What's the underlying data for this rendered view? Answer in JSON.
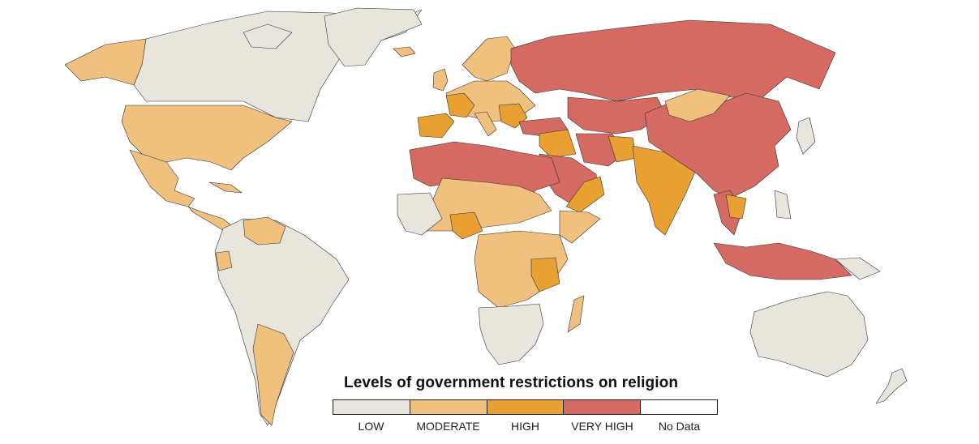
{
  "legend": {
    "title": "Levels of government restrictions on religion",
    "levels": [
      {
        "key": "low",
        "label": "LOW",
        "color": "#e8e5dc"
      },
      {
        "key": "moderate",
        "label": "MODERATE",
        "color": "#f0c07e"
      },
      {
        "key": "high",
        "label": "HIGH",
        "color": "#e8a033"
      },
      {
        "key": "very_high",
        "label": "VERY HIGH",
        "color": "#d56a63"
      },
      {
        "key": "no_data",
        "label": "No Data",
        "color": "#ffffff"
      }
    ]
  },
  "map": {
    "colors": {
      "low": "#e8e5dc",
      "moderate": "#f0c07e",
      "high": "#e8a033",
      "very_high": "#d56a63",
      "no_data": "#ffffff",
      "border": "#333333"
    }
  }
}
